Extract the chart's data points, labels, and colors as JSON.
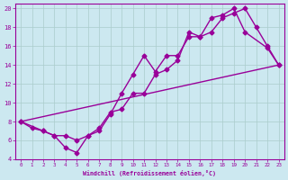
{
  "bg_color": "#cce8f0",
  "grid_color": "#aacccc",
  "line_color": "#990099",
  "marker": "D",
  "markersize": 2.5,
  "linewidth": 1.0,
  "xlabel": "Windchill (Refroidissement éolien,°C)",
  "xlim": [
    -0.5,
    23.5
  ],
  "ylim": [
    4,
    20.5
  ],
  "yticks": [
    4,
    6,
    8,
    10,
    12,
    14,
    16,
    18,
    20
  ],
  "xticks": [
    0,
    1,
    2,
    3,
    4,
    5,
    6,
    7,
    8,
    9,
    10,
    11,
    12,
    13,
    14,
    15,
    16,
    17,
    18,
    19,
    20,
    21,
    22,
    23
  ],
  "line1_x": [
    0,
    23
  ],
  "line1_y": [
    8,
    14
  ],
  "line2_x": [
    0,
    1,
    2,
    3,
    4,
    5,
    6,
    7,
    8,
    9,
    10,
    11,
    12,
    13,
    14,
    15,
    16,
    17,
    18,
    19,
    20,
    22,
    23
  ],
  "line2_y": [
    8,
    7.3,
    7.0,
    6.5,
    5.2,
    4.7,
    6.5,
    7.0,
    8.8,
    11.0,
    13.0,
    15.0,
    13.3,
    15.0,
    15.0,
    17.0,
    17.0,
    19.0,
    19.3,
    20.0,
    17.5,
    15.8,
    14.0
  ],
  "line3_x": [
    0,
    2,
    3,
    4,
    5,
    6,
    7,
    8,
    9,
    10,
    11,
    12,
    13,
    14,
    15,
    16,
    17,
    18,
    19,
    20,
    21,
    22,
    23
  ],
  "line3_y": [
    8,
    7.0,
    6.5,
    6.5,
    6.0,
    6.5,
    7.3,
    9.0,
    9.3,
    11.0,
    11.0,
    13.0,
    13.5,
    14.5,
    17.5,
    17.0,
    17.5,
    19.0,
    19.5,
    20.0,
    18.0,
    16.0,
    14.0
  ]
}
